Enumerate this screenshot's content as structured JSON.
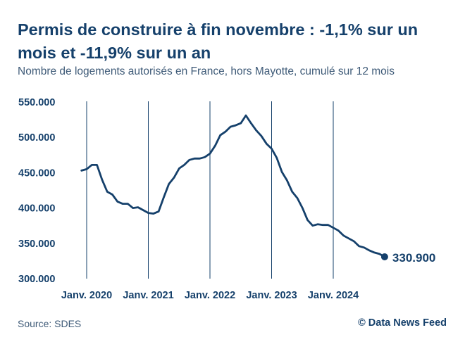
{
  "header": {
    "title": "Permis de construire à fin novembre : -1,1% sur un mois et -11,9% sur un an",
    "subtitle": "Nombre de logements autorisés en France, hors Mayotte, cumulé sur 12 mois"
  },
  "footer": {
    "source": "Source: SDES",
    "credit": "© Data News Feed"
  },
  "colors": {
    "line": "#15406b",
    "text_dark": "#15406b",
    "text_muted": "#3f5b78",
    "vertical_rule": "#15406b"
  },
  "chart_data": {
    "type": "line",
    "title": "Permis de construire à fin novembre : -1,1% sur un mois et -11,9% sur un an",
    "subtitle": "Nombre de logements autorisés en France, hors Mayotte, cumulé sur 12 mois",
    "xlabel": "",
    "ylabel": "",
    "ylim": [
      300000,
      550000
    ],
    "y_ticks": [
      550000,
      500000,
      450000,
      400000,
      350000,
      300000
    ],
    "y_tick_labels": [
      "550.000",
      "500.000",
      "450.000",
      "400.000",
      "350.000",
      "300.000"
    ],
    "x_ticks": [
      "2020-01",
      "2021-01",
      "2022-01",
      "2023-01",
      "2024-01"
    ],
    "x_tick_labels": [
      "Janv. 2020",
      "Janv. 2021",
      "Janv. 2022",
      "Janv. 2023",
      "Janv. 2024"
    ],
    "grid": "vertical lines at each January",
    "last_point_label": "330.900",
    "series": [
      {
        "x": [
          "2019-12",
          "2020-01",
          "2020-02",
          "2020-03",
          "2020-04",
          "2020-05",
          "2020-06",
          "2020-07",
          "2020-08",
          "2020-09",
          "2020-10",
          "2020-11",
          "2020-12",
          "2021-01",
          "2021-02",
          "2021-03",
          "2021-04",
          "2021-05",
          "2021-06",
          "2021-07",
          "2021-08",
          "2021-09",
          "2021-10",
          "2021-11",
          "2021-12",
          "2022-01",
          "2022-02",
          "2022-03",
          "2022-04",
          "2022-05",
          "2022-06",
          "2022-07",
          "2022-08",
          "2022-09",
          "2022-10",
          "2022-11",
          "2022-12",
          "2023-01",
          "2023-02",
          "2023-03",
          "2023-04",
          "2023-05",
          "2023-06",
          "2023-07",
          "2023-08",
          "2023-09",
          "2023-10",
          "2023-11",
          "2023-12",
          "2024-01",
          "2024-02",
          "2024-03",
          "2024-04",
          "2024-05",
          "2024-06",
          "2024-07",
          "2024-08",
          "2024-09",
          "2024-10",
          "2024-11"
        ],
        "values": [
          453000,
          455000,
          461000,
          461000,
          440000,
          423000,
          419000,
          409000,
          406000,
          406000,
          400000,
          401000,
          397000,
          393000,
          392000,
          395000,
          415000,
          434000,
          443000,
          456000,
          461000,
          468000,
          470000,
          470000,
          472000,
          477000,
          488000,
          503000,
          508000,
          515000,
          517000,
          520000,
          531000,
          520000,
          510000,
          502000,
          491000,
          484000,
          471000,
          451000,
          439000,
          423000,
          414000,
          400000,
          383000,
          375000,
          377000,
          376000,
          376000,
          372000,
          368000,
          361000,
          357000,
          353000,
          346000,
          344000,
          340000,
          337000,
          335000,
          330900
        ]
      }
    ]
  }
}
